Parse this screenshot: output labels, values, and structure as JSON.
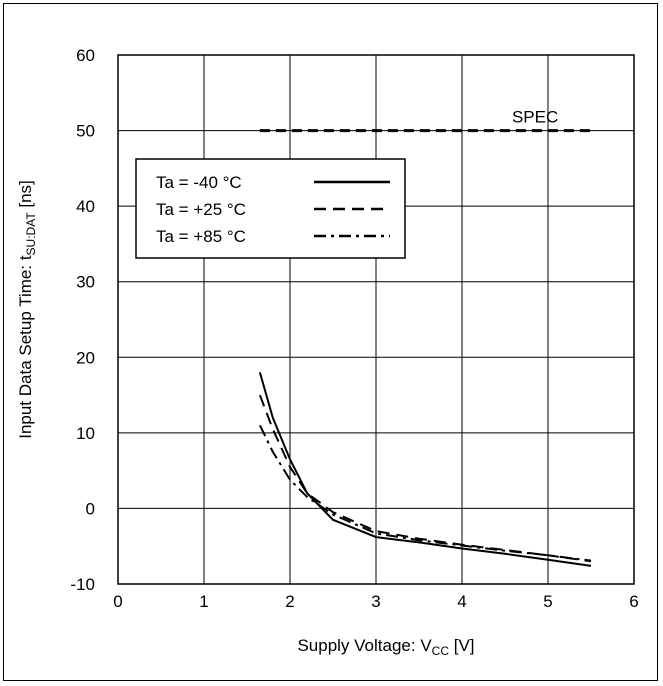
{
  "chart_data": {
    "type": "line",
    "xlabel": {
      "main": "Supply Voltage: V",
      "sub": "CC",
      "unit": " [V]"
    },
    "ylabel": {
      "main": "Input Data Setup Time: t",
      "sub": "SU:DAT",
      "unit": " [ns]"
    },
    "xlim": [
      0,
      6
    ],
    "ylim": [
      -10,
      60
    ],
    "x_ticks": [
      "0",
      "1",
      "2",
      "3",
      "4",
      "5",
      "6"
    ],
    "y_ticks": [
      "-10",
      "0",
      "10",
      "20",
      "30",
      "40",
      "50",
      "60"
    ],
    "grid": true,
    "legend": "upper-left",
    "series": [
      {
        "name": "Ta = -40 °C",
        "style": "solid",
        "x": [
          1.65,
          1.8,
          2.0,
          2.2,
          2.5,
          3.0,
          3.5,
          4.0,
          4.5,
          5.0,
          5.5
        ],
        "y": [
          18,
          12,
          6.5,
          2.0,
          -1.5,
          -3.8,
          -4.5,
          -5.3,
          -6.0,
          -6.8,
          -7.6
        ]
      },
      {
        "name": "Ta = +25 °C",
        "style": "dashed",
        "x": [
          1.65,
          1.8,
          2.0,
          2.2,
          2.5,
          3.0,
          3.5,
          4.0,
          4.5,
          5.0,
          5.5
        ],
        "y": [
          15,
          10.5,
          5.5,
          2.0,
          -0.5,
          -3.0,
          -4.0,
          -4.8,
          -5.5,
          -6.2,
          -7.0
        ]
      },
      {
        "name": "Ta = +85 °C",
        "style": "dashdot",
        "x": [
          1.65,
          1.8,
          2.0,
          2.2,
          2.5,
          3.0,
          3.5,
          4.0,
          4.5,
          5.0,
          5.5
        ],
        "y": [
          11,
          7.5,
          3.8,
          1.5,
          -0.8,
          -3.3,
          -4.2,
          -4.9,
          -5.6,
          -6.2,
          -6.9
        ]
      }
    ],
    "spec_line": {
      "label": "SPEC",
      "y": 50,
      "x_range": [
        1.65,
        5.55
      ]
    }
  }
}
